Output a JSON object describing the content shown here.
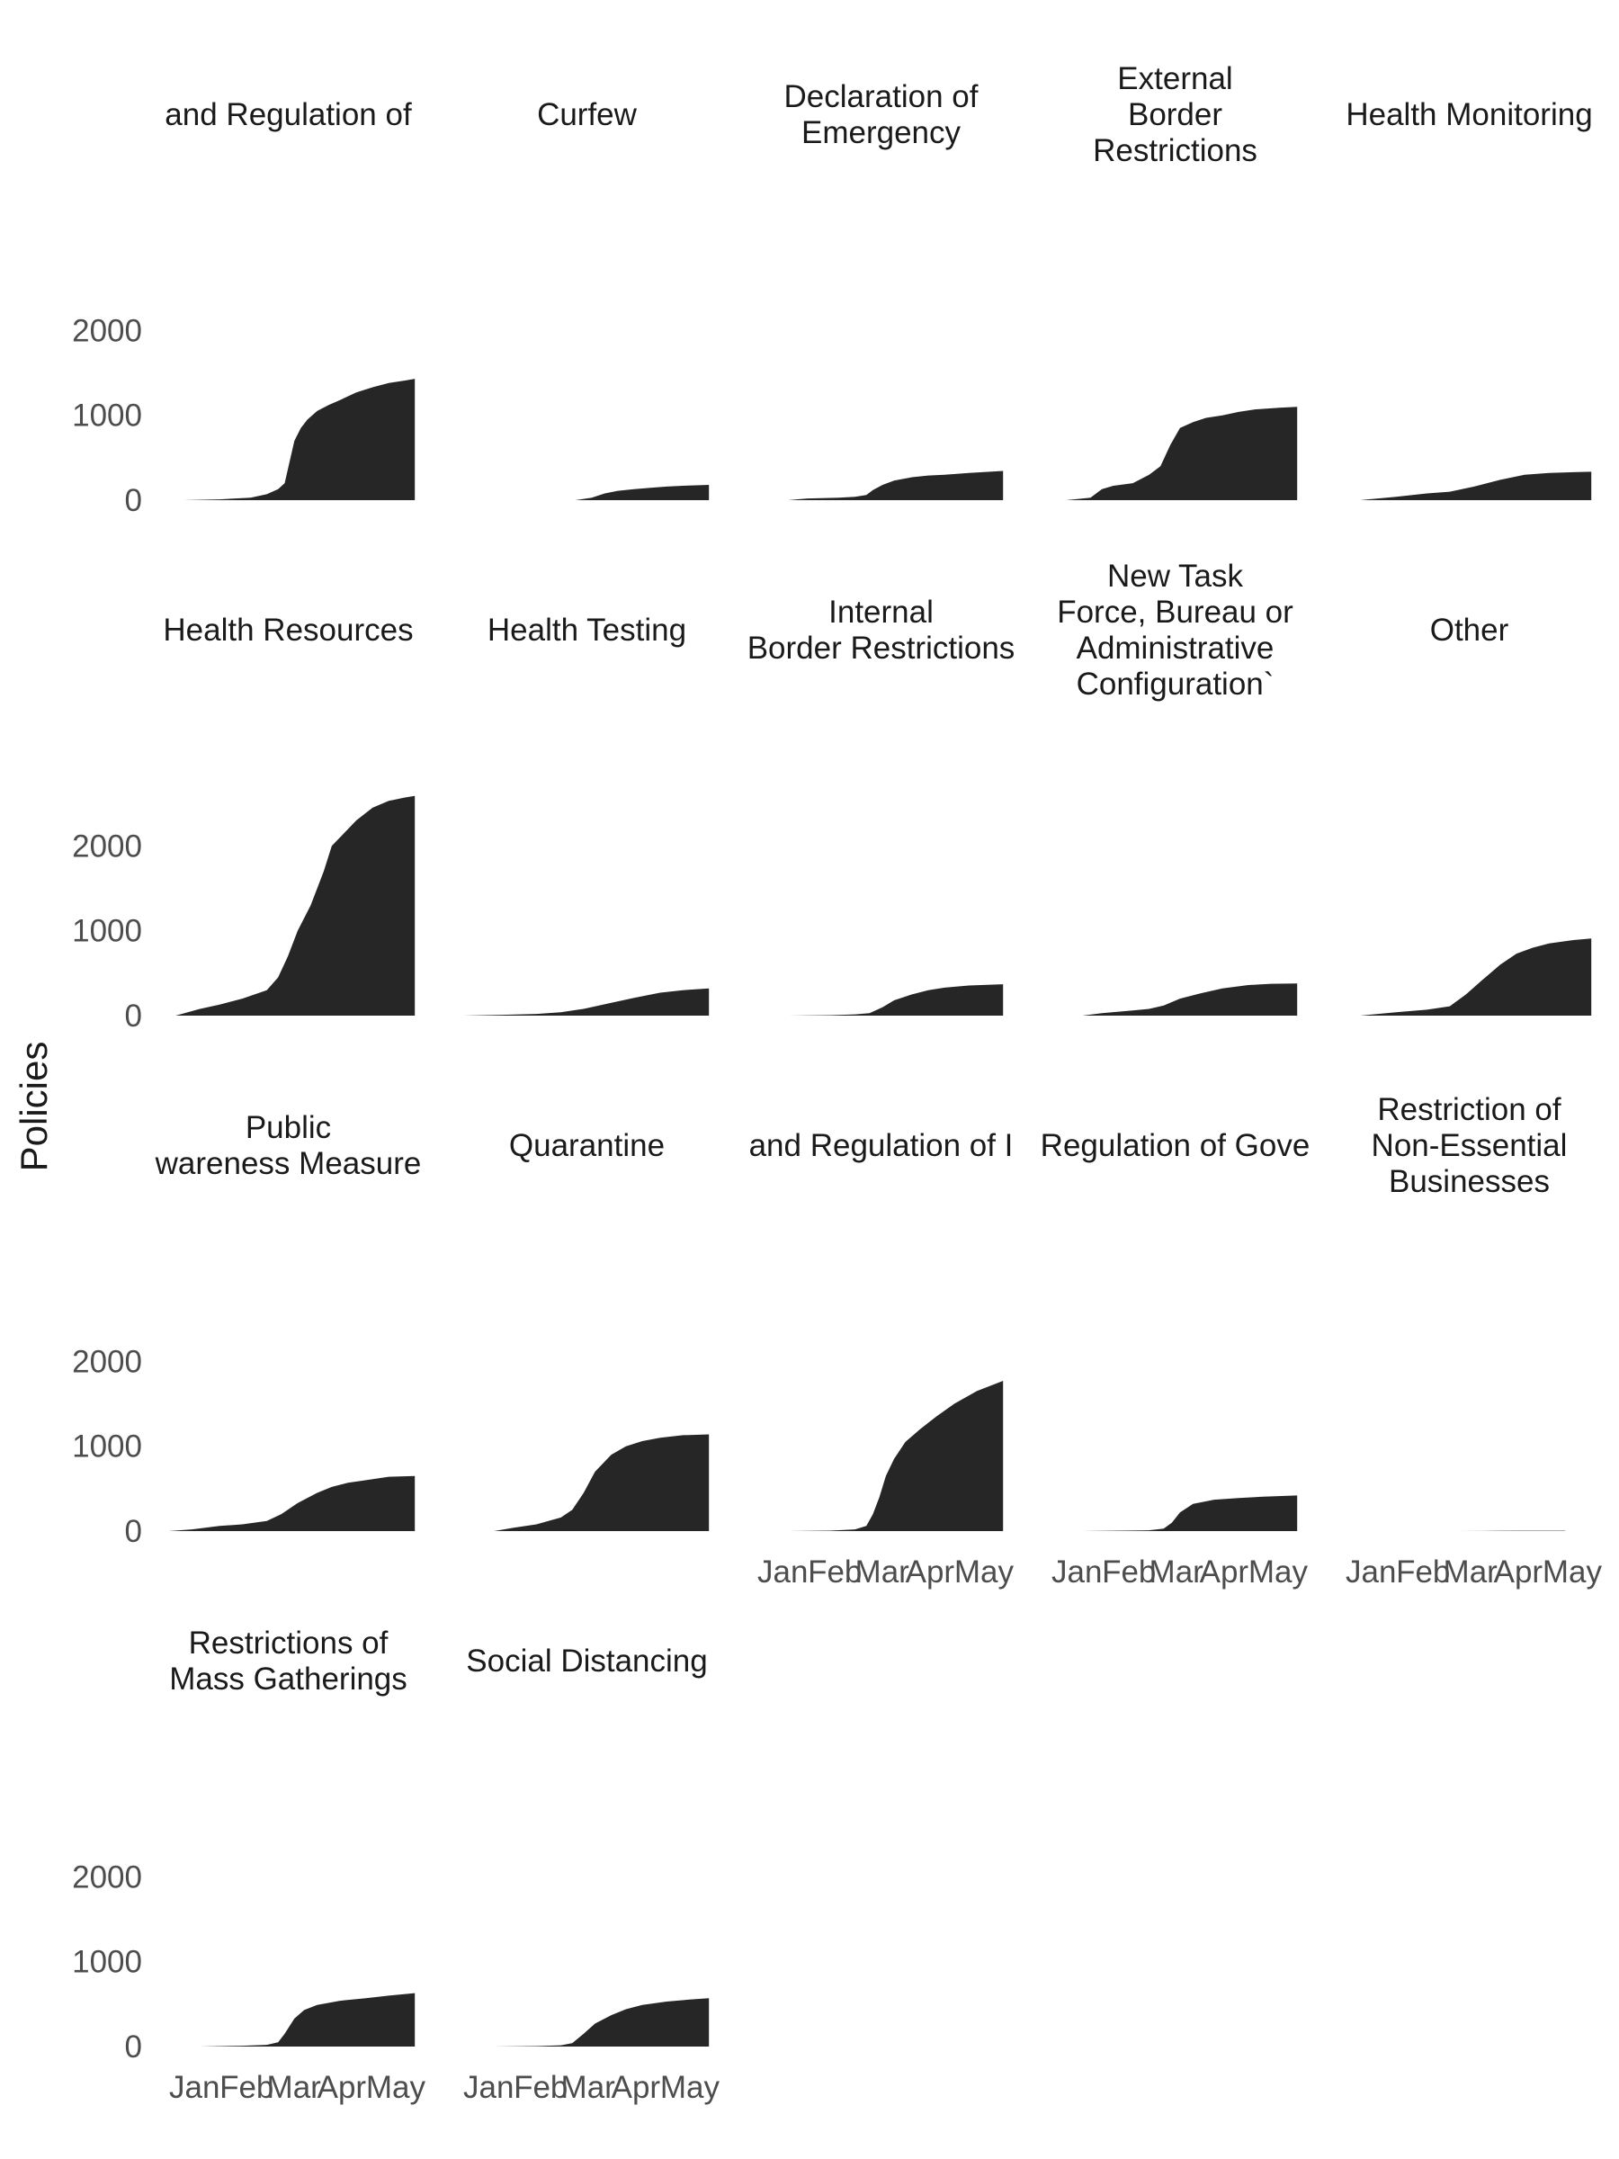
{
  "chart_data": {
    "type": "area",
    "facet_layout": "wrap",
    "ylabel": "Policies",
    "xlabel": "",
    "x_ticks": [
      "Jan",
      "Feb",
      "Mar",
      "Apr",
      "May"
    ],
    "y_ticks": [
      0,
      1000,
      2000
    ],
    "ylim": [
      0,
      2650
    ],
    "xlim": [
      "2020-01-01",
      "2020-06-01"
    ],
    "color": "#262626",
    "panels": [
      {
        "title_lines": [
          "and Regulation of"
        ],
        "x": [
          "2020-01-10",
          "2020-02-01",
          "2020-02-20",
          "2020-03-01",
          "2020-03-08",
          "2020-03-12",
          "2020-03-15",
          "2020-03-18",
          "2020-03-22",
          "2020-03-26",
          "2020-04-01",
          "2020-04-08",
          "2020-04-15",
          "2020-04-25",
          "2020-05-05",
          "2020-05-15",
          "2020-05-25",
          "2020-05-31"
        ],
        "y": [
          0,
          10,
          30,
          70,
          130,
          200,
          450,
          700,
          850,
          950,
          1050,
          1120,
          1180,
          1270,
          1330,
          1380,
          1410,
          1430
        ]
      },
      {
        "title_lines": [
          "Curfew"
        ],
        "x": [
          "2020-03-10",
          "2020-03-20",
          "2020-03-28",
          "2020-04-05",
          "2020-04-15",
          "2020-04-25",
          "2020-05-05",
          "2020-05-15",
          "2020-05-31"
        ],
        "y": [
          0,
          30,
          80,
          110,
          130,
          145,
          160,
          170,
          180
        ]
      },
      {
        "title_lines": [
          "Declaration of",
          "Emergency"
        ],
        "x": [
          "2020-01-20",
          "2020-02-01",
          "2020-02-20",
          "2020-03-01",
          "2020-03-08",
          "2020-03-12",
          "2020-03-18",
          "2020-03-25",
          "2020-04-05",
          "2020-04-15",
          "2020-04-25",
          "2020-05-10",
          "2020-05-31"
        ],
        "y": [
          0,
          20,
          30,
          40,
          60,
          120,
          180,
          230,
          270,
          290,
          300,
          320,
          345
        ]
      },
      {
        "title_lines": [
          "External",
          "Border",
          "Restrictions"
        ],
        "x": [
          "2020-01-10",
          "2020-01-25",
          "2020-02-01",
          "2020-02-08",
          "2020-02-20",
          "2020-03-01",
          "2020-03-08",
          "2020-03-14",
          "2020-03-20",
          "2020-03-28",
          "2020-04-05",
          "2020-04-15",
          "2020-04-25",
          "2020-05-05",
          "2020-05-20",
          "2020-05-31"
        ],
        "y": [
          0,
          30,
          130,
          170,
          200,
          300,
          400,
          650,
          850,
          920,
          970,
          1000,
          1040,
          1070,
          1090,
          1100
        ]
      },
      {
        "title_lines": [
          "Health Monitoring"
        ],
        "x": [
          "2020-01-10",
          "2020-02-01",
          "2020-02-20",
          "2020-03-05",
          "2020-03-20",
          "2020-04-05",
          "2020-04-20",
          "2020-05-05",
          "2020-05-20",
          "2020-05-31"
        ],
        "y": [
          0,
          40,
          80,
          100,
          160,
          240,
          300,
          320,
          330,
          335
        ]
      },
      {
        "title_lines": [
          "Health Resources"
        ],
        "x": [
          "2020-01-05",
          "2020-01-20",
          "2020-02-01",
          "2020-02-15",
          "2020-03-01",
          "2020-03-08",
          "2020-03-14",
          "2020-03-20",
          "2020-03-28",
          "2020-04-05",
          "2020-04-10",
          "2020-04-15",
          "2020-04-25",
          "2020-05-05",
          "2020-05-15",
          "2020-05-25",
          "2020-05-31"
        ],
        "y": [
          0,
          80,
          130,
          200,
          300,
          450,
          700,
          1000,
          1300,
          1700,
          2000,
          2100,
          2300,
          2450,
          2530,
          2570,
          2590
        ]
      },
      {
        "title_lines": [
          "Health Testing"
        ],
        "x": [
          "2020-01-01",
          "2020-01-25",
          "2020-02-15",
          "2020-03-01",
          "2020-03-15",
          "2020-04-01",
          "2020-04-15",
          "2020-05-01",
          "2020-05-15",
          "2020-05-31"
        ],
        "y": [
          0,
          10,
          20,
          40,
          80,
          150,
          210,
          270,
          300,
          320
        ]
      },
      {
        "title_lines": [
          "Internal",
          "Border Restrictions"
        ],
        "x": [
          "2020-01-20",
          "2020-02-15",
          "2020-03-01",
          "2020-03-10",
          "2020-03-18",
          "2020-03-25",
          "2020-04-05",
          "2020-04-15",
          "2020-04-25",
          "2020-05-10",
          "2020-05-31"
        ],
        "y": [
          0,
          5,
          15,
          30,
          100,
          180,
          250,
          300,
          330,
          355,
          370
        ]
      },
      {
        "title_lines": [
          "New Task",
          "Force, Bureau or",
          "Administrative",
          "Configuration`"
        ],
        "x": [
          "2020-01-20",
          "2020-02-01",
          "2020-02-20",
          "2020-03-01",
          "2020-03-10",
          "2020-03-20",
          "2020-04-01",
          "2020-04-15",
          "2020-05-01",
          "2020-05-15",
          "2020-05-31"
        ],
        "y": [
          0,
          30,
          60,
          80,
          120,
          200,
          260,
          320,
          360,
          375,
          380
        ]
      },
      {
        "title_lines": [
          "Other"
        ],
        "x": [
          "2020-01-10",
          "2020-02-01",
          "2020-02-20",
          "2020-03-05",
          "2020-03-15",
          "2020-03-25",
          "2020-04-05",
          "2020-04-15",
          "2020-04-25",
          "2020-05-05",
          "2020-05-20",
          "2020-05-31"
        ],
        "y": [
          0,
          40,
          70,
          110,
          250,
          420,
          600,
          730,
          800,
          850,
          890,
          910
        ]
      },
      {
        "title_lines": [
          "Public",
          "wareness Measure"
        ],
        "x": [
          "2020-01-01",
          "2020-01-15",
          "2020-02-01",
          "2020-02-15",
          "2020-03-01",
          "2020-03-10",
          "2020-03-20",
          "2020-04-01",
          "2020-04-10",
          "2020-04-20",
          "2020-05-01",
          "2020-05-15",
          "2020-05-31"
        ],
        "y": [
          0,
          20,
          60,
          80,
          120,
          200,
          330,
          450,
          520,
          570,
          600,
          640,
          650
        ]
      },
      {
        "title_lines": [
          "Quarantine"
        ],
        "x": [
          "2020-01-20",
          "2020-02-01",
          "2020-02-15",
          "2020-03-01",
          "2020-03-08",
          "2020-03-15",
          "2020-03-22",
          "2020-04-01",
          "2020-04-10",
          "2020-04-20",
          "2020-05-01",
          "2020-05-15",
          "2020-05-31"
        ],
        "y": [
          0,
          40,
          80,
          160,
          250,
          450,
          700,
          900,
          1000,
          1060,
          1100,
          1130,
          1140
        ]
      },
      {
        "title_lines": [
          "and Regulation of I"
        ],
        "x": [
          "2020-01-20",
          "2020-02-15",
          "2020-03-01",
          "2020-03-08",
          "2020-03-12",
          "2020-03-16",
          "2020-03-20",
          "2020-03-25",
          "2020-04-01",
          "2020-04-10",
          "2020-04-20",
          "2020-05-01",
          "2020-05-15",
          "2020-05-31"
        ],
        "y": [
          0,
          5,
          20,
          60,
          200,
          400,
          650,
          850,
          1050,
          1200,
          1350,
          1500,
          1650,
          1770
        ]
      },
      {
        "title_lines": [
          "Regulation of Gove"
        ],
        "x": [
          "2020-01-20",
          "2020-02-15",
          "2020-03-01",
          "2020-03-10",
          "2020-03-15",
          "2020-03-20",
          "2020-03-28",
          "2020-04-10",
          "2020-04-25",
          "2020-05-10",
          "2020-05-31"
        ],
        "y": [
          0,
          5,
          10,
          30,
          100,
          220,
          320,
          370,
          390,
          405,
          420
        ]
      },
      {
        "title_lines": [
          "Restriction of",
          "Non-Essential",
          "Businesses"
        ],
        "x": [
          "2020-03-10",
          "2020-04-01",
          "2020-04-15",
          "2020-05-01",
          "2020-05-15"
        ],
        "y": [
          0,
          2,
          4,
          4,
          4
        ]
      },
      {
        "title_lines": [
          "Restrictions of",
          "Mass Gatherings"
        ],
        "x": [
          "2020-01-20",
          "2020-02-15",
          "2020-03-01",
          "2020-03-08",
          "2020-03-12",
          "2020-03-18",
          "2020-03-24",
          "2020-04-01",
          "2020-04-15",
          "2020-05-01",
          "2020-05-15",
          "2020-05-31"
        ],
        "y": [
          0,
          10,
          20,
          50,
          150,
          330,
          430,
          490,
          540,
          570,
          600,
          630
        ]
      },
      {
        "title_lines": [
          "Social Distancing"
        ],
        "x": [
          "2020-01-20",
          "2020-02-15",
          "2020-03-01",
          "2020-03-08",
          "2020-03-15",
          "2020-03-22",
          "2020-04-01",
          "2020-04-10",
          "2020-04-20",
          "2020-05-05",
          "2020-05-20",
          "2020-05-31"
        ],
        "y": [
          0,
          5,
          15,
          40,
          150,
          270,
          370,
          440,
          490,
          530,
          555,
          570
        ]
      }
    ]
  }
}
